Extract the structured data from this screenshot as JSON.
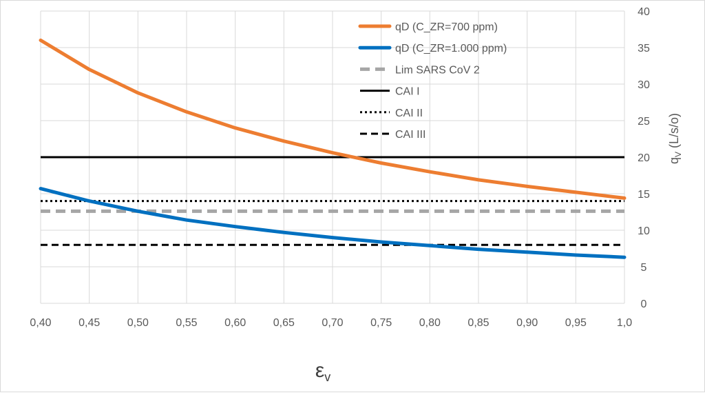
{
  "chart_data": {
    "type": "line",
    "x_ticks": [
      "0,40",
      "0,45",
      "0,50",
      "0,55",
      "0,60",
      "0,65",
      "0,70",
      "0,75",
      "0,80",
      "0,85",
      "0,90",
      "0,95",
      "1,0"
    ],
    "x": [
      0.4,
      0.45,
      0.5,
      0.55,
      0.6,
      0.65,
      0.7,
      0.75,
      0.8,
      0.85,
      0.9,
      0.95,
      1.0
    ],
    "xlim": [
      0.4,
      1.0
    ],
    "xlabel_main": "ε",
    "xlabel_sub": "v",
    "y_ticks": [
      "0",
      "5",
      "10",
      "15",
      "20",
      "25",
      "30",
      "35",
      "40"
    ],
    "ylim": [
      0,
      40
    ],
    "ylabel_main": "q",
    "ylabel_sub": "V",
    "ylabel_rest": " (L/s/o)",
    "y_axis_side": "right",
    "grid": true,
    "legend_position": "top-right",
    "series": [
      {
        "name": "qD (C_ZR=700 ppm)",
        "color": "#ED7D31",
        "style": "solid-thick",
        "values": [
          36.0,
          32.0,
          28.8,
          26.2,
          24.0,
          22.2,
          20.6,
          19.2,
          18.0,
          16.9,
          16.0,
          15.2,
          14.4
        ]
      },
      {
        "name": "qD (C_ZR=1.000 ppm)",
        "color": "#0070C0",
        "style": "solid-thick",
        "values": [
          15.7,
          14.0,
          12.6,
          11.4,
          10.5,
          9.7,
          9.0,
          8.4,
          7.9,
          7.4,
          7.0,
          6.6,
          6.3
        ]
      },
      {
        "name": "Lim SARS CoV 2",
        "color": "#A6A6A6",
        "style": "dashed-thick",
        "values": [
          12.6,
          12.6,
          12.6,
          12.6,
          12.6,
          12.6,
          12.6,
          12.6,
          12.6,
          12.6,
          12.6,
          12.6,
          12.6
        ]
      },
      {
        "name": "CAI I",
        "color": "#000000",
        "style": "solid",
        "values": [
          20,
          20,
          20,
          20,
          20,
          20,
          20,
          20,
          20,
          20,
          20,
          20,
          20
        ]
      },
      {
        "name": "CAI II",
        "color": "#000000",
        "style": "dotted",
        "values": [
          14,
          14,
          14,
          14,
          14,
          14,
          14,
          14,
          14,
          14,
          14,
          14,
          14
        ]
      },
      {
        "name": "CAI III",
        "color": "#000000",
        "style": "dashed",
        "values": [
          8,
          8,
          8,
          8,
          8,
          8,
          8,
          8,
          8,
          8,
          8,
          8,
          8
        ]
      }
    ]
  }
}
